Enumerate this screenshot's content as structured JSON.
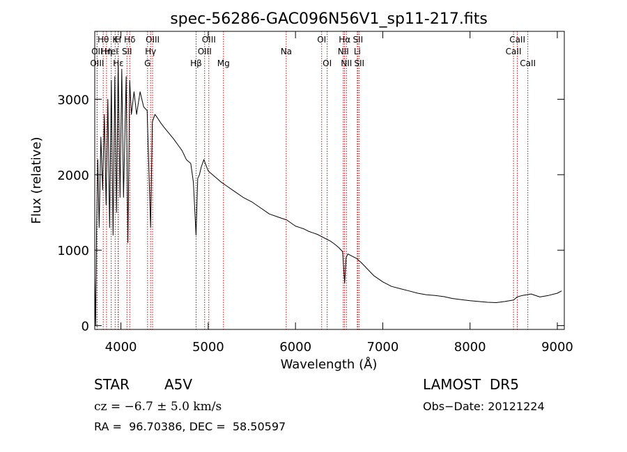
{
  "colors": {
    "background": "#ffffff",
    "axes": "#000000",
    "spectrum": "#000000",
    "line_markers": "#cc0000"
  },
  "chart_data": {
    "type": "line",
    "title": "spec-56286-GAC096N56V1_sp11-217.fits",
    "xlabel": "Wavelength (Å)",
    "ylabel": "Flux (relative)",
    "xlim": [
      3700,
      9080
    ],
    "ylim": [
      -50,
      3900
    ],
    "xticks": [
      4000,
      5000,
      6000,
      7000,
      8000,
      9000
    ],
    "yticks": [
      0,
      1000,
      2000,
      3000
    ],
    "grid": false,
    "series": [
      {
        "x": [
          3700,
          3710,
          3720,
          3735,
          3750,
          3770,
          3790,
          3810,
          3830,
          3850,
          3870,
          3890,
          3910,
          3930,
          3950,
          3968,
          3990,
          4010,
          4030,
          4060,
          4080,
          4101,
          4120,
          4150,
          4180,
          4220,
          4260,
          4300,
          4340,
          4360,
          4390,
          4420,
          4460,
          4500,
          4550,
          4600,
          4650,
          4700,
          4750,
          4800,
          4830,
          4861,
          4880,
          4900,
          4920,
          4950,
          5000,
          5050,
          5100,
          5150,
          5200,
          5300,
          5400,
          5500,
          5600,
          5700,
          5800,
          5900,
          6000,
          6050,
          6100,
          6150,
          6200,
          6250,
          6300,
          6350,
          6400,
          6450,
          6500,
          6540,
          6563,
          6580,
          6600,
          6650,
          6700,
          6750,
          6800,
          6850,
          6900,
          6950,
          7000,
          7100,
          7200,
          7300,
          7400,
          7500,
          7600,
          7700,
          7800,
          7900,
          8000,
          8100,
          8200,
          8300,
          8400,
          8500,
          8540,
          8600,
          8700,
          8800,
          8900,
          9000,
          9050
        ],
        "y": [
          650,
          0,
          1200,
          2200,
          1300,
          2500,
          1800,
          2800,
          1600,
          3000,
          1300,
          3250,
          1200,
          3300,
          1500,
          3500,
          1700,
          3400,
          1700,
          3300,
          1100,
          3250,
          2800,
          3100,
          2800,
          3100,
          2900,
          2850,
          1300,
          2700,
          2800,
          2750,
          2680,
          2620,
          2550,
          2480,
          2400,
          2320,
          2200,
          2150,
          1900,
          1200,
          1950,
          2000,
          2100,
          2200,
          2050,
          2000,
          1950,
          1900,
          1860,
          1780,
          1700,
          1640,
          1560,
          1480,
          1440,
          1400,
          1320,
          1300,
          1280,
          1250,
          1230,
          1210,
          1180,
          1150,
          1120,
          1080,
          1030,
          980,
          560,
          900,
          950,
          920,
          890,
          840,
          780,
          720,
          660,
          620,
          580,
          520,
          490,
          460,
          430,
          410,
          400,
          385,
          360,
          345,
          330,
          320,
          310,
          305,
          320,
          340,
          380,
          400,
          420,
          380,
          400,
          430,
          460
        ]
      }
    ],
    "lines": [
      {
        "label": "Hθ",
        "x": 3797,
        "row": 1
      },
      {
        "label": "OII",
        "x": 3727,
        "row": 2
      },
      {
        "label": "OIII",
        "x": 3727,
        "row": 3
      },
      {
        "label": "Hη",
        "x": 3835,
        "row": 2
      },
      {
        "label": "K",
        "x": 3934,
        "row": 1
      },
      {
        "label": "HeI",
        "x": 3889,
        "row": 2
      },
      {
        "label": "Hε",
        "x": 3970,
        "row": 3
      },
      {
        "label": "H",
        "x": 3968,
        "row": 1
      },
      {
        "label": "Hδ",
        "x": 4101,
        "row": 1
      },
      {
        "label": "SII",
        "x": 4069,
        "row": 2
      },
      {
        "label": "OIII",
        "x": 4363,
        "row": 1
      },
      {
        "label": "Hγ",
        "x": 4340,
        "row": 2
      },
      {
        "label": "G",
        "x": 4305,
        "row": 3
      },
      {
        "label": "OIII",
        "x": 5007,
        "row": 1
      },
      {
        "label": "OIII",
        "x": 4959,
        "row": 2
      },
      {
        "label": "Hβ",
        "x": 4861,
        "row": 3
      },
      {
        "label": "Mg",
        "x": 5175,
        "row": 3
      },
      {
        "label": "Na",
        "x": 5894,
        "row": 2
      },
      {
        "label": "OI",
        "x": 6300,
        "row": 1
      },
      {
        "label": "OI",
        "x": 6363,
        "row": 3
      },
      {
        "label": "Hα",
        "x": 6563,
        "row": 1
      },
      {
        "label": "SII",
        "x": 6716,
        "row": 1
      },
      {
        "label": "NII",
        "x": 6548,
        "row": 2
      },
      {
        "label": "Li",
        "x": 6708,
        "row": 2
      },
      {
        "label": "NII",
        "x": 6584,
        "row": 3
      },
      {
        "label": "SII",
        "x": 6731,
        "row": 3
      },
      {
        "label": "CaII",
        "x": 8542,
        "row": 1
      },
      {
        "label": "CaII",
        "x": 8498,
        "row": 2
      },
      {
        "label": "CaII",
        "x": 8662,
        "row": 3
      }
    ]
  },
  "info": {
    "object_class": "STAR",
    "subclass": "A5V",
    "survey": "LAMOST  DR5",
    "redshift": "cz = −6.7 ± 5.0 km/s",
    "obs_date": "Obs−Date: 20121224",
    "coords": "RA =  96.70386, DEC =  58.50597"
  }
}
